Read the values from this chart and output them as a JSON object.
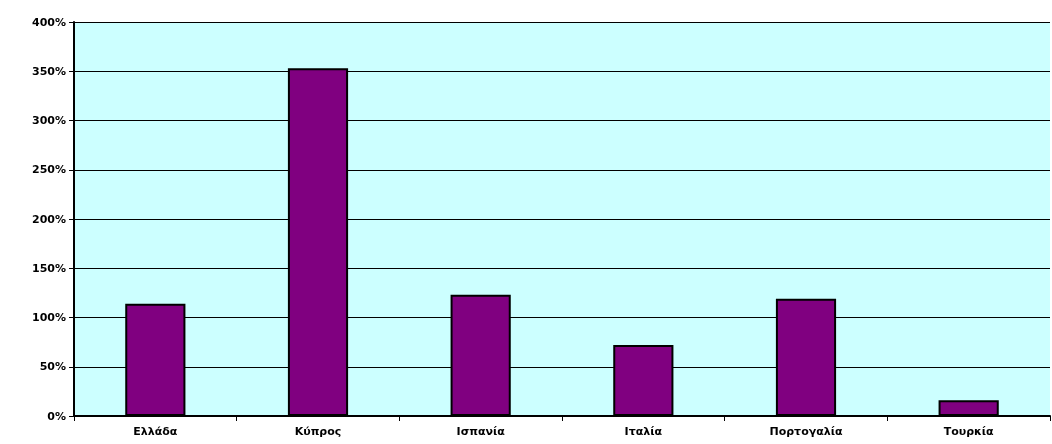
{
  "chart_data": {
    "type": "bar",
    "categories": [
      "Ελλάδα",
      "Κύπρος",
      "Ισπανία",
      "Ιταλία",
      "Πορτογαλία",
      "Τουρκία"
    ],
    "series": [
      {
        "color": "#800080",
        "values": [
          114,
          353,
          123,
          72,
          119,
          16
        ]
      }
    ],
    "ylim": [
      0,
      400
    ],
    "yticks": [
      {
        "value": 0,
        "label": "0%"
      },
      {
        "value": 50,
        "label": "50%"
      },
      {
        "value": 100,
        "label": "100%"
      },
      {
        "value": 150,
        "label": "150%"
      },
      {
        "value": 200,
        "label": "200%"
      },
      {
        "value": 250,
        "label": "250%"
      },
      {
        "value": 300,
        "label": "300%"
      },
      {
        "value": 350,
        "label": "350%"
      },
      {
        "value": 400,
        "label": "400%"
      }
    ],
    "grid": "y"
  }
}
